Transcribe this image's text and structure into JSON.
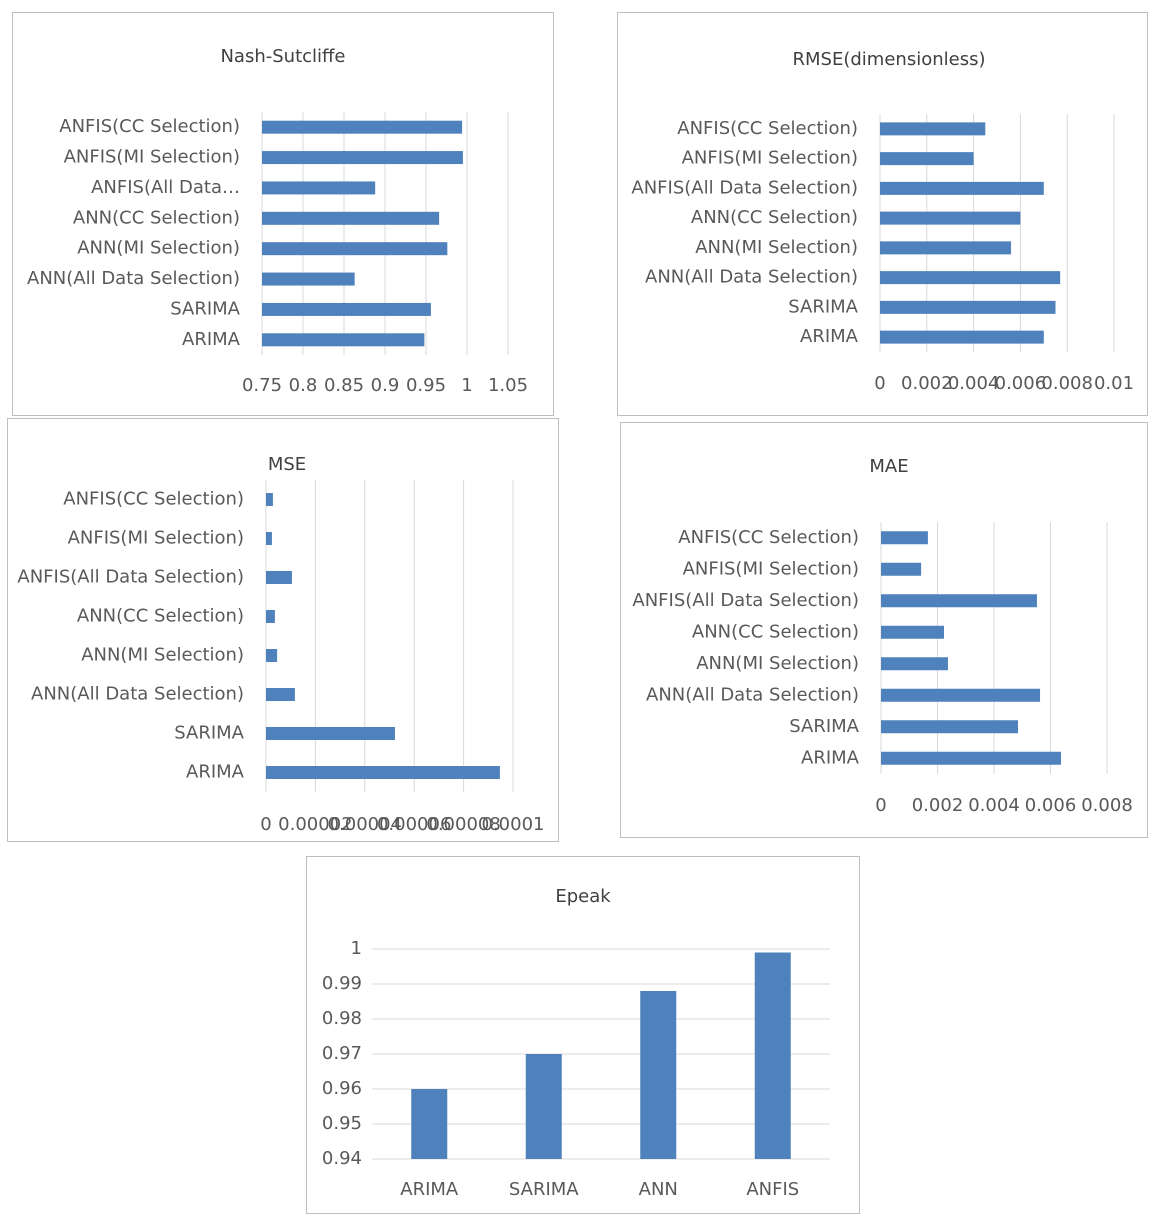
{
  "chart_data": [
    {
      "type": "hbar",
      "title": "Nash-Sutcliffe",
      "categories": [
        "ANFIS(CC Selection)",
        "ANFIS(MI Selection)",
        "ANFIS(All Data…",
        "ANN(CC Selection)",
        "ANN(MI Selection)",
        "ANN(All Data Selection)",
        "SARIMA",
        "ARIMA"
      ],
      "values": [
        0.994,
        0.995,
        0.888,
        0.966,
        0.976,
        0.863,
        0.956,
        0.948
      ],
      "color": "#4f81bd",
      "xlim": [
        0.75,
        1.05
      ],
      "xticks": [
        0.75,
        0.8,
        0.85,
        0.9,
        0.95,
        1,
        1.05
      ],
      "grid": true
    },
    {
      "type": "hbar",
      "title": "RMSE(dimensionless)",
      "categories": [
        "ANFIS(CC Selection)",
        "ANFIS(MI Selection)",
        "ANFIS(All Data Selection)",
        "ANN(CC Selection)",
        "ANN(MI Selection)",
        "ANN(All Data Selection)",
        "SARIMA",
        "ARIMA"
      ],
      "values": [
        0.0045,
        0.004,
        0.007,
        0.006,
        0.0056,
        0.0077,
        0.0075,
        0.007
      ],
      "color": "#4f81bd",
      "xlim": [
        0,
        0.01
      ],
      "xticks": [
        0,
        0.002,
        0.004,
        0.006,
        0.008,
        0.01
      ],
      "grid": true
    },
    {
      "type": "hbar",
      "title": "MSE",
      "categories": [
        "ANFIS(CC Selection)",
        "ANFIS(MI Selection)",
        "ANFIS(All Data Selection)",
        "ANN(CC Selection)",
        "ANN(MI Selection)",
        "ANN(All Data Selection)",
        "SARIMA",
        "ARIMA"
      ],
      "values": [
        2.8e-06,
        2.4e-06,
        1.05e-05,
        3.6e-06,
        4.5e-06,
        1.17e-05,
        5.22e-05,
        9.47e-05
      ],
      "color": "#4f81bd",
      "xlim": [
        0,
        0.0001
      ],
      "xticks": [
        0,
        2e-05,
        4e-05,
        6e-05,
        8e-05,
        0.0001
      ],
      "grid": true
    },
    {
      "type": "hbar",
      "title": "MAE",
      "categories": [
        "ANFIS(CC Selection)",
        "ANFIS(MI Selection)",
        "ANFIS(All Data Selection)",
        "ANN(CC Selection)",
        "ANN(MI Selection)",
        "ANN(All Data Selection)",
        "SARIMA",
        "ARIMA"
      ],
      "values": [
        0.00166,
        0.00142,
        0.00552,
        0.00223,
        0.00237,
        0.00563,
        0.00485,
        0.00637
      ],
      "color": "#4f81bd",
      "xlim": [
        0,
        0.008
      ],
      "xticks": [
        0,
        0.002,
        0.004,
        0.006,
        0.008
      ],
      "grid": true
    },
    {
      "type": "bar",
      "title": "Epeak",
      "categories": [
        "ARIMA",
        "SARIMA",
        "ANN",
        "ANFIS"
      ],
      "values": [
        0.96,
        0.97,
        0.988,
        0.999
      ],
      "color": "#4f81bd",
      "ylim": [
        0.94,
        1
      ],
      "yticks": [
        0.94,
        0.95,
        0.96,
        0.97,
        0.98,
        0.99,
        1
      ],
      "grid": true
    }
  ]
}
